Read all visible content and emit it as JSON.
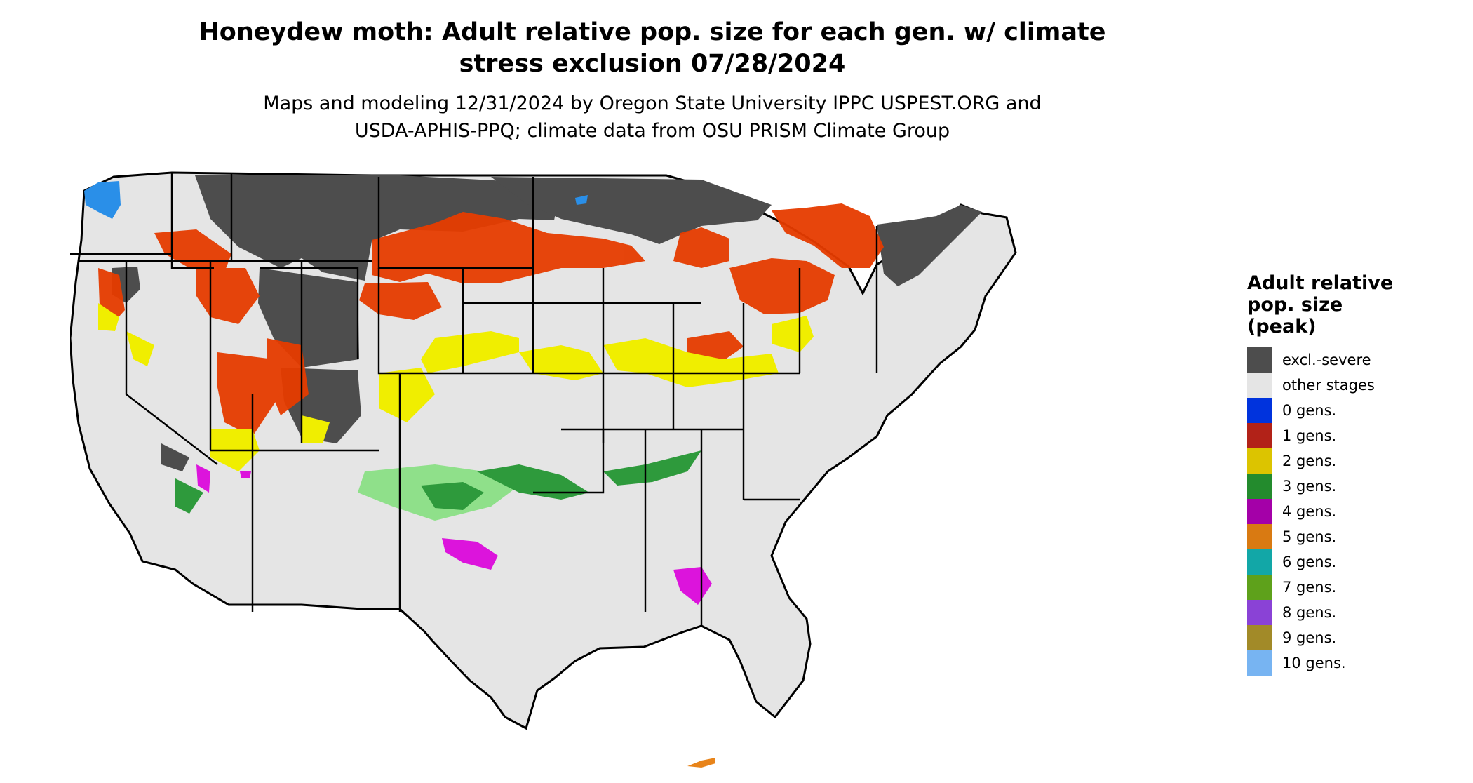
{
  "title": {
    "line1": "Honeydew moth: Adult relative pop. size for each gen. w/ climate",
    "line2": "stress exclusion 07/28/2024"
  },
  "subtitle": {
    "line1": "Maps and modeling 12/31/2024 by Oregon State University IPPC USPEST.ORG and",
    "line2": "USDA-APHIS-PPQ; climate data from OSU PRISM Climate Group"
  },
  "legend": {
    "title_lines": [
      "Adult relative",
      "pop. size",
      "(peak)"
    ],
    "items": [
      {
        "label": "excl.-severe",
        "color": "#4d4d4d"
      },
      {
        "label": "other stages",
        "color": "#e5e5e5"
      },
      {
        "label": "0 gens.",
        "color": "#0033dd"
      },
      {
        "label": "1 gens.",
        "color": "#b22218"
      },
      {
        "label": "2 gens.",
        "color": "#dcc400"
      },
      {
        "label": "3 gens.",
        "color": "#238b2d"
      },
      {
        "label": "4 gens.",
        "color": "#a400a8"
      },
      {
        "label": "5 gens.",
        "color": "#d97a12"
      },
      {
        "label": "6 gens.",
        "color": "#12a7a7"
      },
      {
        "label": "7 gens.",
        "color": "#5ea11b"
      },
      {
        "label": "8 gens.",
        "color": "#8a42d6"
      },
      {
        "label": "9 gens.",
        "color": "#a28a28"
      },
      {
        "label": "10 gens.",
        "color": "#77b4f2"
      }
    ]
  },
  "map": {
    "region": "Contiguous United States",
    "colors": {
      "land": "#e5e5e5",
      "excluded": "#4d4d4d",
      "one_gen": "#e63c00",
      "two_gen": "#f0ee00",
      "three_gen": "#2e9a3c",
      "three_gen_light": "#8fe08a",
      "four_gen": "#dc14dc",
      "ten_gen": "#2a8fe8",
      "five_gen": "#e8841a",
      "border": "#000000"
    }
  }
}
